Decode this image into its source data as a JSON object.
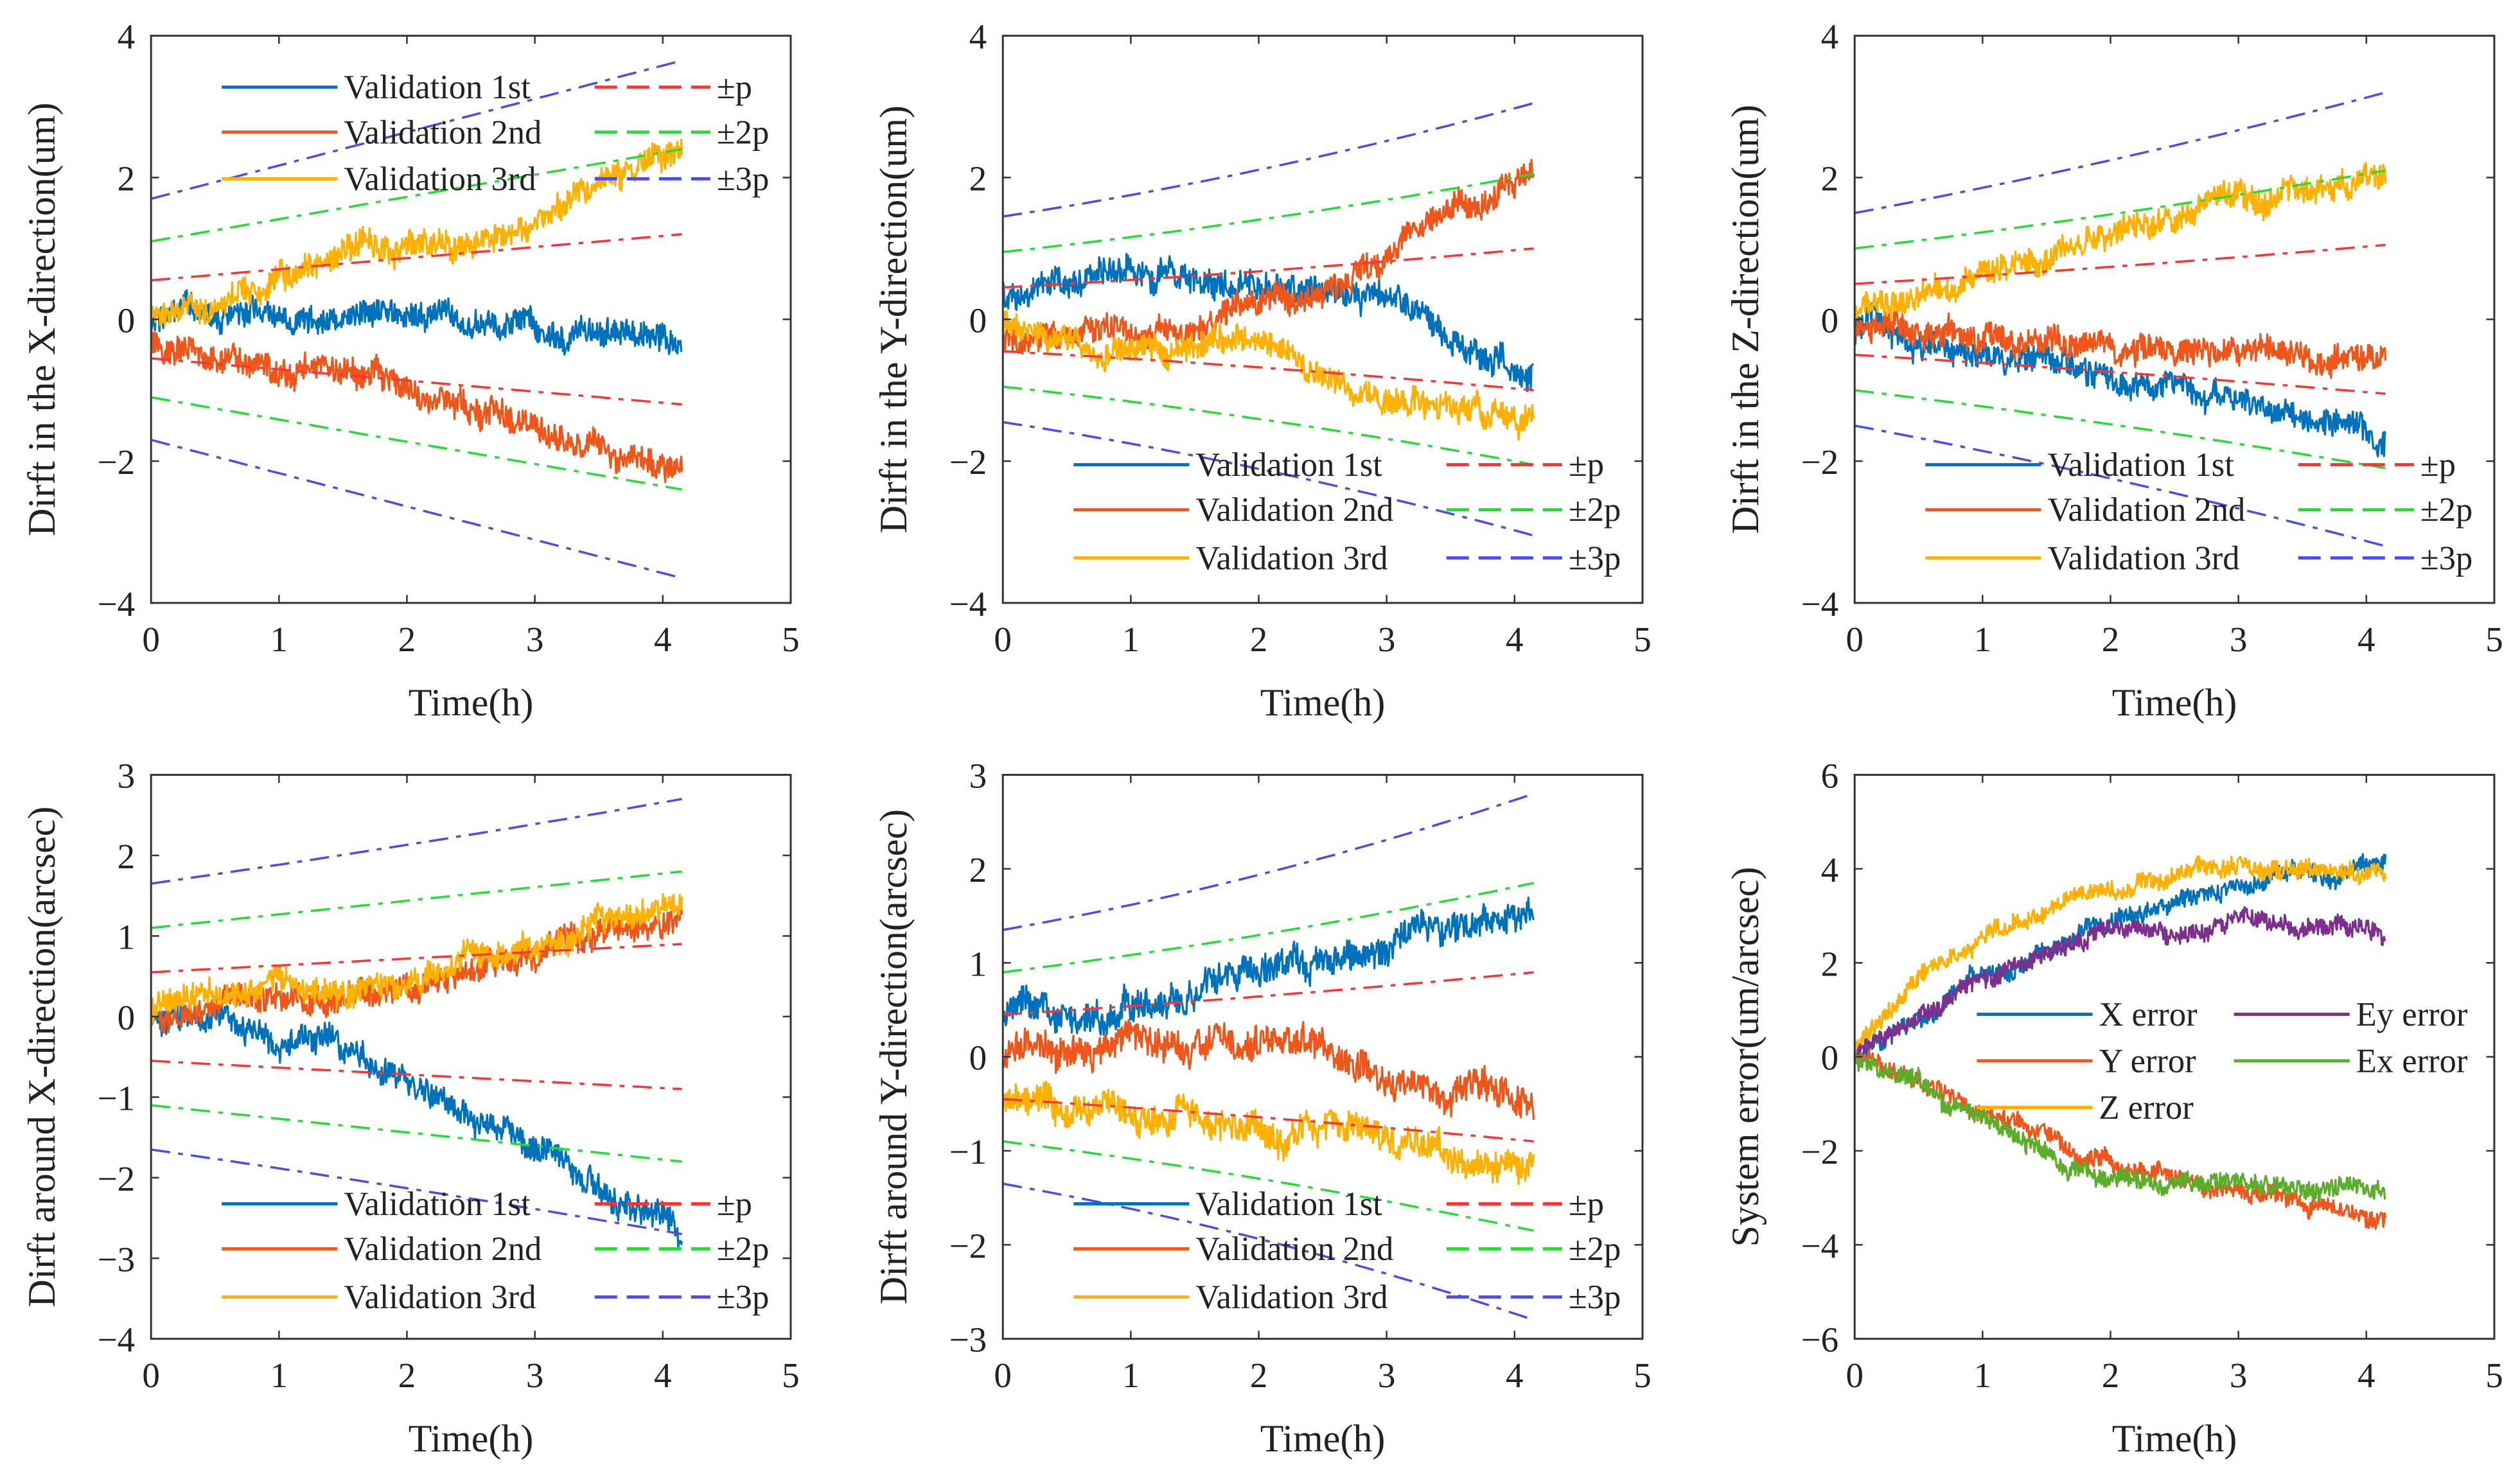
{
  "chart_data": [
    {
      "type": "line",
      "ylabel": "Dirft in the X-direction(um)",
      "xlabel": "Time(h)",
      "xlim": [
        0,
        5
      ],
      "xticks": [
        0,
        1,
        2,
        3,
        4,
        5
      ],
      "ylim": [
        -4,
        4
      ],
      "yticks": [
        -4,
        -2,
        0,
        2,
        4
      ],
      "legend_placement": "top-left",
      "series": [
        {
          "name": "Validation 1st",
          "color": "#0072BD",
          "trend": [
            [
              0,
              0
            ],
            [
              1,
              0.05
            ],
            [
              2,
              0.05
            ],
            [
              3,
              -0.1
            ],
            [
              4.15,
              -0.4
            ]
          ],
          "noise": 0.35
        },
        {
          "name": "Validation 2nd",
          "color": "#F0561A",
          "trend": [
            [
              0,
              -0.3
            ],
            [
              1,
              -0.7
            ],
            [
              2,
              -0.9
            ],
            [
              3,
              -1.5
            ],
            [
              4.15,
              -2.2
            ]
          ],
          "noise": 0.35
        },
        {
          "name": "Validation 3rd",
          "color": "#FFB000",
          "trend": [
            [
              0,
              0.1
            ],
            [
              1,
              0.5
            ],
            [
              2,
              0.9
            ],
            [
              3,
              1.6
            ],
            [
              4.15,
              2.5
            ]
          ],
          "noise": 0.35
        }
      ],
      "bounds": [
        {
          "name": "±p",
          "color": "#FF3333",
          "start": 0.55,
          "end": 1.2,
          "curve": 0
        },
        {
          "name": "±2p",
          "color": "#22DD33",
          "start": 1.1,
          "end": 2.4,
          "curve": 0
        },
        {
          "name": "±3p",
          "color": "#4A4AEE",
          "start": 1.7,
          "end": 3.65,
          "curve": 0
        }
      ]
    },
    {
      "type": "line",
      "ylabel": "Dirft in the Y-direction(um)",
      "xlabel": "Time(h)",
      "xlim": [
        0,
        5
      ],
      "xticks": [
        0,
        1,
        2,
        3,
        4,
        5
      ],
      "ylim": [
        -4,
        4
      ],
      "yticks": [
        -4,
        -2,
        0,
        2,
        4
      ],
      "legend_placement": "bottom-right",
      "series": [
        {
          "name": "Validation 1st",
          "color": "#0072BD",
          "trend": [
            [
              0,
              0.4
            ],
            [
              1,
              0.7
            ],
            [
              2,
              0.5
            ],
            [
              3,
              0.3
            ],
            [
              4.15,
              -0.7
            ]
          ],
          "noise": 0.35
        },
        {
          "name": "Validation 2nd",
          "color": "#F0561A",
          "trend": [
            [
              0,
              -0.3
            ],
            [
              1,
              -0.2
            ],
            [
              2,
              0
            ],
            [
              3,
              0.8
            ],
            [
              4.15,
              2.2
            ]
          ],
          "noise": 0.35
        },
        {
          "name": "Validation 3rd",
          "color": "#FFB000",
          "trend": [
            [
              0,
              -0.1
            ],
            [
              1,
              -0.5
            ],
            [
              2,
              -0.4
            ],
            [
              3,
              -1.0
            ],
            [
              4.15,
              -1.5
            ]
          ],
          "noise": 0.35
        }
      ],
      "bounds": [
        {
          "name": "±p",
          "color": "#FF3333",
          "start": 0.45,
          "end": 1.0,
          "curve": 0.15
        },
        {
          "name": "±2p",
          "color": "#22DD33",
          "start": 0.95,
          "end": 2.05,
          "curve": 0.3
        },
        {
          "name": "±3p",
          "color": "#4A4AEE",
          "start": 1.45,
          "end": 3.05,
          "curve": 0.45
        }
      ]
    },
    {
      "type": "line",
      "ylabel": "Dirft in the Z-direction(um)",
      "xlabel": "Time(h)",
      "xlim": [
        0,
        5
      ],
      "xticks": [
        0,
        1,
        2,
        3,
        4,
        5
      ],
      "ylim": [
        -4,
        4
      ],
      "yticks": [
        -4,
        -2,
        0,
        2,
        4
      ],
      "legend_placement": "bottom-right",
      "series": [
        {
          "name": "Validation 1st",
          "color": "#0072BD",
          "trend": [
            [
              0,
              -0.2
            ],
            [
              1,
              -0.5
            ],
            [
              2,
              -0.8
            ],
            [
              3,
              -1.1
            ],
            [
              4.15,
              -1.7
            ]
          ],
          "noise": 0.35
        },
        {
          "name": "Validation 2nd",
          "color": "#F0561A",
          "trend": [
            [
              0,
              -0.1
            ],
            [
              1,
              -0.2
            ],
            [
              2,
              -0.3
            ],
            [
              3,
              -0.5
            ],
            [
              4.15,
              -0.6
            ]
          ],
          "noise": 0.35
        },
        {
          "name": "Validation 3rd",
          "color": "#FFB000",
          "trend": [
            [
              0,
              0.1
            ],
            [
              1,
              0.6
            ],
            [
              2,
              1.1
            ],
            [
              3,
              1.6
            ],
            [
              4.15,
              2.1
            ]
          ],
          "noise": 0.35
        }
      ],
      "bounds": [
        {
          "name": "±p",
          "color": "#FF3333",
          "start": 0.5,
          "end": 1.05,
          "curve": 0.1
        },
        {
          "name": "±2p",
          "color": "#22DD33",
          "start": 1.0,
          "end": 2.1,
          "curve": 0.2
        },
        {
          "name": "±3p",
          "color": "#4A4AEE",
          "start": 1.5,
          "end": 3.2,
          "curve": 0.3
        }
      ]
    },
    {
      "type": "line",
      "ylabel": "Dirft around X-direction(arcsec)",
      "xlabel": "Time(h)",
      "xlim": [
        0,
        5
      ],
      "xticks": [
        0,
        1,
        2,
        3,
        4,
        5
      ],
      "ylim": [
        -4,
        3
      ],
      "yticks": [
        -4,
        -3,
        -2,
        -1,
        0,
        1,
        2,
        3
      ],
      "legend_placement": "bottom-right",
      "series": [
        {
          "name": "Validation 1st",
          "color": "#0072BD",
          "trend": [
            [
              0,
              0
            ],
            [
              1,
              -0.2
            ],
            [
              2,
              -0.8
            ],
            [
              3,
              -1.6
            ],
            [
              4.15,
              -2.7
            ]
          ],
          "noise": 0.3
        },
        {
          "name": "Validation 2nd",
          "color": "#F0561A",
          "trend": [
            [
              0,
              0
            ],
            [
              1,
              0.2
            ],
            [
              2,
              0.4
            ],
            [
              3,
              0.8
            ],
            [
              4.15,
              1.3
            ]
          ],
          "noise": 0.3
        },
        {
          "name": "Validation 3rd",
          "color": "#FFB000",
          "trend": [
            [
              0,
              0.05
            ],
            [
              1,
              0.25
            ],
            [
              2,
              0.5
            ],
            [
              3,
              0.9
            ],
            [
              4.15,
              1.4
            ]
          ],
          "noise": 0.3
        }
      ],
      "bounds": [
        {
          "name": "±p",
          "color": "#FF3333",
          "start": 0.55,
          "end": 0.9,
          "curve": 0
        },
        {
          "name": "±2p",
          "color": "#22DD33",
          "start": 1.1,
          "end": 1.8,
          "curve": 0
        },
        {
          "name": "±3p",
          "color": "#4A4AEE",
          "start": 1.65,
          "end": 2.7,
          "curve": 0.1
        }
      ]
    },
    {
      "type": "line",
      "ylabel": "Dirft around Y-direction(arcsec)",
      "xlabel": "Time(h)",
      "xlim": [
        0,
        5
      ],
      "xticks": [
        0,
        1,
        2,
        3,
        4,
        5
      ],
      "ylim": [
        -3,
        3
      ],
      "yticks": [
        -3,
        -2,
        -1,
        0,
        1,
        2,
        3
      ],
      "legend_placement": "bottom-right",
      "series": [
        {
          "name": "Validation 1st",
          "color": "#0072BD",
          "trend": [
            [
              0,
              0.5
            ],
            [
              1,
              0.5
            ],
            [
              2,
              0.8
            ],
            [
              3,
              1.1
            ],
            [
              4.15,
              1.6
            ]
          ],
          "noise": 0.3
        },
        {
          "name": "Validation 2nd",
          "color": "#F0561A",
          "trend": [
            [
              0,
              0
            ],
            [
              1,
              0
            ],
            [
              2,
              0.1
            ],
            [
              3,
              -0.2
            ],
            [
              4.15,
              -0.5
            ]
          ],
          "noise": 0.3
        },
        {
          "name": "Validation 3rd",
          "color": "#FFB000",
          "trend": [
            [
              0,
              -0.5
            ],
            [
              1,
              -0.6
            ],
            [
              2,
              -0.8
            ],
            [
              3,
              -1.0
            ],
            [
              4.15,
              -1.1
            ]
          ],
          "noise": 0.3
        }
      ],
      "bounds": [
        {
          "name": "±p",
          "color": "#FF3333",
          "start": 0.45,
          "end": 0.9,
          "curve": 0.1
        },
        {
          "name": "±2p",
          "color": "#22DD33",
          "start": 0.9,
          "end": 1.85,
          "curve": 0.25
        },
        {
          "name": "±3p",
          "color": "#4A4AEE",
          "start": 1.35,
          "end": 2.8,
          "curve": 0.45
        }
      ]
    },
    {
      "type": "line",
      "ylabel": "System error(um/arcsec)",
      "xlabel": "Time(h)",
      "xlim": [
        0,
        5
      ],
      "xticks": [
        0,
        1,
        2,
        3,
        4,
        5
      ],
      "ylim": [
        -6,
        6
      ],
      "yticks": [
        -6,
        -4,
        -2,
        0,
        2,
        4,
        6
      ],
      "legend_placement": "center",
      "series": [
        {
          "name": "X error",
          "color": "#0072BD",
          "trend": [
            [
              0,
              0
            ],
            [
              0.5,
              0.9
            ],
            [
              1,
              1.7
            ],
            [
              2,
              2.9
            ],
            [
              3,
              3.7
            ],
            [
              4.15,
              4.0
            ]
          ],
          "noise": 0.35
        },
        {
          "name": "Y error",
          "color": "#F0561A",
          "trend": [
            [
              0,
              0.1
            ],
            [
              0.5,
              -0.5
            ],
            [
              1,
              -1.2
            ],
            [
              2,
              -2.3
            ],
            [
              2.5,
              -2.6
            ],
            [
              3,
              -2.8
            ],
            [
              4.15,
              -3.5
            ]
          ],
          "noise": 0.35
        },
        {
          "name": "Z error",
          "color": "#FFB000",
          "trend": [
            [
              0,
              0.1
            ],
            [
              0.5,
              1.8
            ],
            [
              1,
              2.6
            ],
            [
              2,
              3.6
            ],
            [
              3,
              4.0
            ],
            [
              4.15,
              3.8
            ]
          ],
          "noise": 0.35
        },
        {
          "name": "Ey error",
          "color": "#7E2F8E",
          "trend": [
            [
              0,
              0
            ],
            [
              0.5,
              1.0
            ],
            [
              1,
              1.7
            ],
            [
              2,
              2.6
            ],
            [
              3,
              2.9
            ],
            [
              4.15,
              2.6
            ]
          ],
          "noise": 0.35
        },
        {
          "name": "Ex error",
          "color": "#5AAE2A",
          "trend": [
            [
              0,
              0
            ],
            [
              0.5,
              -0.6
            ],
            [
              1,
              -1.3
            ],
            [
              2,
              -2.7
            ],
            [
              3,
              -2.6
            ],
            [
              4.15,
              -2.8
            ]
          ],
          "noise": 0.35
        }
      ],
      "bounds": []
    }
  ]
}
